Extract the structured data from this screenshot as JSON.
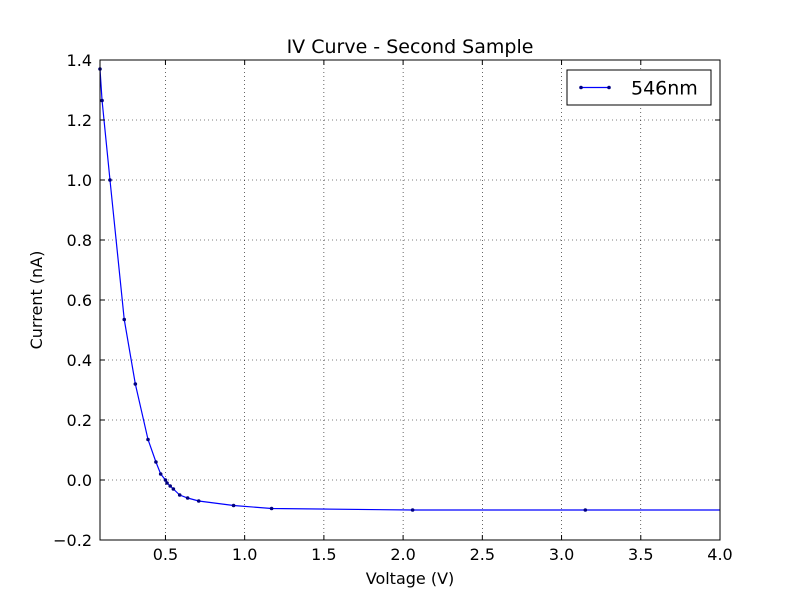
{
  "chart_data": {
    "type": "line",
    "title": "IV Curve - Second Sample",
    "xlabel": "Voltage (V)",
    "ylabel": "Current (nA)",
    "xlim": [
      0.087,
      4.0
    ],
    "ylim": [
      -0.2,
      1.4
    ],
    "x_ticks": [
      0.5,
      1.0,
      1.5,
      2.0,
      2.5,
      3.0,
      3.5,
      4.0
    ],
    "x_tick_labels": [
      "0.5",
      "1.0",
      "1.5",
      "2.0",
      "2.5",
      "3.0",
      "3.5",
      "4.0"
    ],
    "y_ticks": [
      -0.2,
      0.0,
      0.2,
      0.4,
      0.6,
      0.8,
      1.0,
      1.2,
      1.4
    ],
    "y_tick_labels": [
      "−0.2",
      "0.0",
      "0.2",
      "0.4",
      "0.6",
      "0.8",
      "1.0",
      "1.2",
      "1.4"
    ],
    "grid": true,
    "legend_position": "top-right",
    "series": [
      {
        "name": "546nm",
        "color": "#0000ff",
        "marker_color": "#000080",
        "x": [
          0.087,
          0.1,
          0.15,
          0.24,
          0.31,
          0.39,
          0.44,
          0.47,
          0.5,
          0.51,
          0.53,
          0.55,
          0.59,
          0.64,
          0.71,
          0.93,
          1.17,
          2.06,
          3.15
        ],
        "y": [
          1.37,
          1.265,
          1.0,
          0.535,
          0.32,
          0.135,
          0.06,
          0.02,
          0.0,
          -0.01,
          -0.02,
          -0.03,
          -0.05,
          -0.06,
          -0.07,
          -0.085,
          -0.095,
          -0.1,
          -0.1
        ],
        "line_end": {
          "x": 4.0,
          "y": -0.1
        }
      }
    ]
  }
}
